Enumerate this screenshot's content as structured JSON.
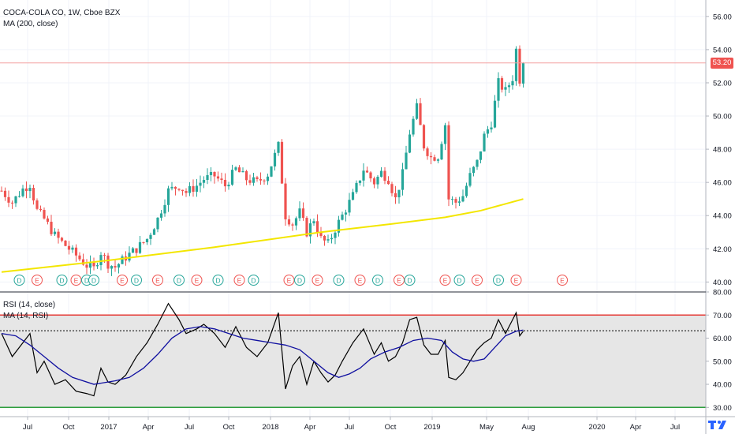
{
  "legend": {
    "symbol": "COCA-COLA CO, 1W, Cboe BZX",
    "ma": "MA (200, close)",
    "rsi": "RSI (14, close)",
    "rsi_ma": "MA (14, RSI)"
  },
  "price_badge": "53.20",
  "colors": {
    "up": "#26a69a",
    "down": "#ef5350",
    "ma200": "#f3e600",
    "rsi": "#000000",
    "rsi_ma": "#1010a0",
    "rsi_upper": "#e53935",
    "rsi_lower": "#2e9e3e",
    "price_line": "#f4a0a0",
    "badge": "#ef5350",
    "rsi_band": "#e6e6e6"
  },
  "chart_data": [
    {
      "type": "candlestick",
      "title": "COCA-COLA CO, 1W, Cboe BZX",
      "ylim": [
        39.4,
        56.8
      ],
      "y_ticks": [
        40.0,
        42.0,
        44.0,
        46.0,
        48.0,
        50.0,
        52.0,
        54.0,
        56.0
      ],
      "y_tick_labels": [
        "40.00",
        "42.00",
        "44.00",
        "46.00",
        "48.00",
        "50.00",
        "52.00",
        "54.00",
        "56.00"
      ],
      "x_tick_labels": [
        "Jul",
        "Oct",
        "2017",
        "Apr",
        "Jul",
        "Oct",
        "2018",
        "Apr",
        "Jul",
        "Oct",
        "2019",
        "May",
        "Aug",
        "2020",
        "Apr",
        "Jul"
      ],
      "last_price": 53.2,
      "close_path": [
        {
          "week": 0,
          "close": 45.5
        },
        {
          "week": 3,
          "close": 44.8
        },
        {
          "week": 6,
          "close": 45.6
        },
        {
          "week": 8,
          "close": 45.9
        },
        {
          "week": 10,
          "close": 44.3
        },
        {
          "week": 12,
          "close": 43.8
        },
        {
          "week": 15,
          "close": 42.8
        },
        {
          "week": 18,
          "close": 42.2
        },
        {
          "week": 21,
          "close": 41.6
        },
        {
          "week": 24,
          "close": 41.0
        },
        {
          "week": 26,
          "close": 40.8
        },
        {
          "week": 28,
          "close": 41.8
        },
        {
          "week": 30,
          "close": 41.1
        },
        {
          "week": 32,
          "close": 40.9
        },
        {
          "week": 35,
          "close": 41.5
        },
        {
          "week": 38,
          "close": 42.0
        },
        {
          "week": 41,
          "close": 42.6
        },
        {
          "week": 44,
          "close": 43.8
        },
        {
          "week": 47,
          "close": 45.5
        },
        {
          "week": 50,
          "close": 45.8
        },
        {
          "week": 52,
          "close": 45.4
        },
        {
          "week": 55,
          "close": 45.8
        },
        {
          "week": 57,
          "close": 46.2
        },
        {
          "week": 60,
          "close": 46.4
        },
        {
          "week": 63,
          "close": 45.8
        },
        {
          "week": 66,
          "close": 46.8
        },
        {
          "week": 69,
          "close": 46.2
        },
        {
          "week": 72,
          "close": 46.0
        },
        {
          "week": 75,
          "close": 46.5
        },
        {
          "week": 78,
          "close": 48.2
        },
        {
          "week": 80,
          "close": 44.0
        },
        {
          "week": 82,
          "close": 43.5
        },
        {
          "week": 84,
          "close": 44.2
        },
        {
          "week": 86,
          "close": 43.0
        },
        {
          "week": 88,
          "close": 43.8
        },
        {
          "week": 90,
          "close": 42.6
        },
        {
          "week": 92,
          "close": 42.3
        },
        {
          "week": 94,
          "close": 43.2
        },
        {
          "week": 96,
          "close": 44.0
        },
        {
          "week": 99,
          "close": 45.2
        },
        {
          "week": 102,
          "close": 46.8
        },
        {
          "week": 105,
          "close": 46.0
        },
        {
          "week": 107,
          "close": 46.6
        },
        {
          "week": 109,
          "close": 46.2
        },
        {
          "week": 111,
          "close": 45.0
        },
        {
          "week": 113,
          "close": 46.5
        },
        {
          "week": 115,
          "close": 49.0
        },
        {
          "week": 117,
          "close": 50.5
        },
        {
          "week": 119,
          "close": 48.2
        },
        {
          "week": 121,
          "close": 47.5
        },
        {
          "week": 123,
          "close": 47.6
        },
        {
          "week": 125,
          "close": 49.5
        },
        {
          "week": 126,
          "close": 45.0
        },
        {
          "week": 128,
          "close": 44.8
        },
        {
          "week": 130,
          "close": 45.2
        },
        {
          "week": 132,
          "close": 46.4
        },
        {
          "week": 134,
          "close": 47.2
        },
        {
          "week": 136,
          "close": 48.8
        },
        {
          "week": 138,
          "close": 49.6
        },
        {
          "week": 140,
          "close": 52.0
        },
        {
          "week": 142,
          "close": 51.5
        },
        {
          "week": 144,
          "close": 52.3
        },
        {
          "week": 145,
          "close": 54.0
        },
        {
          "week": 146,
          "close": 52.2
        },
        {
          "week": 147,
          "close": 53.2
        }
      ],
      "ma200": [
        {
          "week": 0,
          "value": 40.6
        },
        {
          "week": 30,
          "value": 41.3
        },
        {
          "week": 60,
          "value": 42.1
        },
        {
          "week": 90,
          "value": 43.0
        },
        {
          "week": 110,
          "value": 43.5
        },
        {
          "week": 125,
          "value": 43.9
        },
        {
          "week": 135,
          "value": 44.3
        },
        {
          "week": 147,
          "value": 45.0
        }
      ],
      "events": [
        {
          "week": 5,
          "label": "D"
        },
        {
          "week": 17,
          "label": "D"
        },
        {
          "week": 10,
          "label": "E"
        },
        {
          "week": 21,
          "label": "E"
        },
        {
          "week": 24,
          "label": "D"
        },
        {
          "week": 26,
          "label": "D"
        },
        {
          "week": 34,
          "label": "E"
        },
        {
          "week": 38,
          "label": "D"
        },
        {
          "week": 44,
          "label": "E"
        },
        {
          "week": 50,
          "label": "D"
        },
        {
          "week": 55,
          "label": "E"
        },
        {
          "week": 61,
          "label": "D"
        },
        {
          "week": 67,
          "label": "E"
        },
        {
          "week": 71,
          "label": "D"
        },
        {
          "week": 81,
          "label": "E"
        },
        {
          "week": 84,
          "label": "D"
        },
        {
          "week": 89,
          "label": "E"
        },
        {
          "week": 95,
          "label": "D"
        },
        {
          "week": 101,
          "label": "E"
        },
        {
          "week": 106,
          "label": "D"
        },
        {
          "week": 112,
          "label": "E"
        },
        {
          "week": 115,
          "label": "D"
        },
        {
          "week": 125,
          "label": "E"
        },
        {
          "week": 129,
          "label": "D"
        },
        {
          "week": 134,
          "label": "E"
        },
        {
          "week": 140,
          "label": "D"
        },
        {
          "week": 145,
          "label": "E"
        },
        {
          "week": 158,
          "label": "E"
        }
      ]
    },
    {
      "type": "line",
      "title": "RSI (14, close)",
      "ylim": [
        26,
        80
      ],
      "y_ticks": [
        30.0,
        40.0,
        50.0,
        60.0,
        70.0,
        80.0
      ],
      "y_tick_labels": [
        "30.00",
        "40.00",
        "50.00",
        "60.00",
        "70.00",
        "80.00"
      ],
      "levels": [
        70,
        30
      ],
      "last_value": 63.2,
      "series": [
        {
          "name": "RSI (14, close)",
          "points": [
            {
              "week": 0,
              "value": 62
            },
            {
              "week": 3,
              "value": 52
            },
            {
              "week": 6,
              "value": 58
            },
            {
              "week": 8,
              "value": 62
            },
            {
              "week": 10,
              "value": 45
            },
            {
              "week": 12,
              "value": 50
            },
            {
              "week": 15,
              "value": 40
            },
            {
              "week": 18,
              "value": 42
            },
            {
              "week": 21,
              "value": 37
            },
            {
              "week": 24,
              "value": 36
            },
            {
              "week": 26,
              "value": 35
            },
            {
              "week": 28,
              "value": 47
            },
            {
              "week": 30,
              "value": 41
            },
            {
              "week": 32,
              "value": 40
            },
            {
              "week": 35,
              "value": 44
            },
            {
              "week": 38,
              "value": 52
            },
            {
              "week": 41,
              "value": 58
            },
            {
              "week": 44,
              "value": 66
            },
            {
              "week": 47,
              "value": 75
            },
            {
              "week": 50,
              "value": 68
            },
            {
              "week": 52,
              "value": 62
            },
            {
              "week": 55,
              "value": 64
            },
            {
              "week": 57,
              "value": 66
            },
            {
              "week": 60,
              "value": 62
            },
            {
              "week": 63,
              "value": 56
            },
            {
              "week": 66,
              "value": 65
            },
            {
              "week": 69,
              "value": 56
            },
            {
              "week": 72,
              "value": 52
            },
            {
              "week": 75,
              "value": 58
            },
            {
              "week": 78,
              "value": 71
            },
            {
              "week": 80,
              "value": 38
            },
            {
              "week": 82,
              "value": 48
            },
            {
              "week": 84,
              "value": 52
            },
            {
              "week": 86,
              "value": 40
            },
            {
              "week": 88,
              "value": 50
            },
            {
              "week": 90,
              "value": 45
            },
            {
              "week": 92,
              "value": 41
            },
            {
              "week": 94,
              "value": 44
            },
            {
              "week": 96,
              "value": 50
            },
            {
              "week": 99,
              "value": 58
            },
            {
              "week": 102,
              "value": 64
            },
            {
              "week": 105,
              "value": 53
            },
            {
              "week": 107,
              "value": 58
            },
            {
              "week": 109,
              "value": 50
            },
            {
              "week": 111,
              "value": 52
            },
            {
              "week": 113,
              "value": 58
            },
            {
              "week": 115,
              "value": 68
            },
            {
              "week": 117,
              "value": 69
            },
            {
              "week": 119,
              "value": 57
            },
            {
              "week": 121,
              "value": 53
            },
            {
              "week": 123,
              "value": 53
            },
            {
              "week": 125,
              "value": 59
            },
            {
              "week": 126,
              "value": 43
            },
            {
              "week": 128,
              "value": 42
            },
            {
              "week": 130,
              "value": 45
            },
            {
              "week": 132,
              "value": 50
            },
            {
              "week": 134,
              "value": 55
            },
            {
              "week": 136,
              "value": 58
            },
            {
              "week": 138,
              "value": 60
            },
            {
              "week": 140,
              "value": 68
            },
            {
              "week": 142,
              "value": 62
            },
            {
              "week": 144,
              "value": 68
            },
            {
              "week": 145,
              "value": 71
            },
            {
              "week": 146,
              "value": 61
            },
            {
              "week": 147,
              "value": 63
            }
          ]
        },
        {
          "name": "MA (14, RSI)",
          "points": [
            {
              "week": 0,
              "value": 62
            },
            {
              "week": 4,
              "value": 61
            },
            {
              "week": 8,
              "value": 57
            },
            {
              "week": 12,
              "value": 52
            },
            {
              "week": 16,
              "value": 47
            },
            {
              "week": 20,
              "value": 43
            },
            {
              "week": 26,
              "value": 40
            },
            {
              "week": 32,
              "value": 41.5
            },
            {
              "week": 36,
              "value": 43
            },
            {
              "week": 40,
              "value": 47
            },
            {
              "week": 44,
              "value": 53
            },
            {
              "week": 48,
              "value": 60
            },
            {
              "week": 52,
              "value": 64
            },
            {
              "week": 56,
              "value": 65
            },
            {
              "week": 60,
              "value": 64
            },
            {
              "week": 64,
              "value": 62
            },
            {
              "week": 68,
              "value": 60
            },
            {
              "week": 72,
              "value": 59
            },
            {
              "week": 76,
              "value": 58
            },
            {
              "week": 80,
              "value": 57
            },
            {
              "week": 84,
              "value": 55
            },
            {
              "week": 88,
              "value": 50
            },
            {
              "week": 92,
              "value": 45
            },
            {
              "week": 95,
              "value": 43
            },
            {
              "week": 98,
              "value": 44.5
            },
            {
              "week": 101,
              "value": 47
            },
            {
              "week": 104,
              "value": 51
            },
            {
              "week": 108,
              "value": 54
            },
            {
              "week": 112,
              "value": 56
            },
            {
              "week": 116,
              "value": 59
            },
            {
              "week": 120,
              "value": 60
            },
            {
              "week": 124,
              "value": 59
            },
            {
              "week": 127,
              "value": 54
            },
            {
              "week": 130,
              "value": 51
            },
            {
              "week": 133,
              "value": 50
            },
            {
              "week": 136,
              "value": 51
            },
            {
              "week": 139,
              "value": 56
            },
            {
              "week": 142,
              "value": 61
            },
            {
              "week": 145,
              "value": 63
            },
            {
              "week": 147,
              "value": 63.5
            }
          ]
        }
      ]
    }
  ]
}
